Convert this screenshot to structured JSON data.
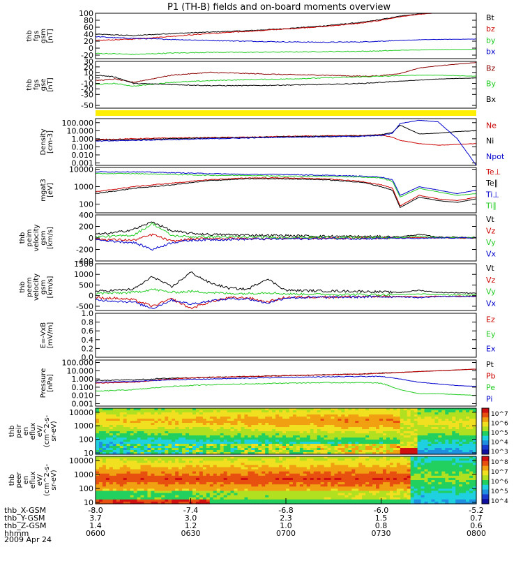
{
  "title": "P1 (TH-B) fields and on-board moments overview",
  "date_label": "2009 Apr 24",
  "colors": {
    "black": "#000000",
    "red": "#cc0000",
    "darkred": "#8b0000",
    "green": "#22cc22",
    "blue": "#0000cc",
    "yellow": "#ffee00"
  },
  "time_axis": {
    "rows": [
      {
        "label": "thb_X-GSM",
        "values": [
          "-8.0",
          "-7.4",
          "-6.8",
          "-6.0",
          "-5.2"
        ]
      },
      {
        "label": "thb_Y-GSM",
        "values": [
          "3.7",
          "3.0",
          "2.3",
          "1.5",
          "0.7"
        ]
      },
      {
        "label": "thb_Z-GSM",
        "values": [
          "1.4",
          "1.2",
          "1.0",
          "0.8",
          "0.6"
        ]
      },
      {
        "label": "hhmm",
        "values": [
          "0600",
          "0630",
          "0700",
          "0730",
          "0800"
        ]
      }
    ]
  },
  "chart_data": [
    {
      "type": "line",
      "name": "fgs_gsm",
      "ylabel_lines": [
        "thb",
        "fgs",
        "gsm",
        "[nT]"
      ],
      "ylim": [
        -30,
        100
      ],
      "ticks": [
        "100",
        "80",
        "60",
        "40",
        "20",
        "0",
        "-20"
      ],
      "tick_values": [
        100,
        80,
        60,
        40,
        20,
        0,
        -20
      ],
      "legend": [
        {
          "text": "Bt",
          "color": "#000000"
        },
        {
          "text": "bz",
          "color": "#cc0000"
        },
        {
          "text": "by",
          "color": "#22cc22"
        },
        {
          "text": "bx",
          "color": "#0000cc"
        }
      ],
      "x": [
        0,
        0.05,
        0.1,
        0.2,
        0.3,
        0.4,
        0.5,
        0.6,
        0.7,
        0.75,
        0.8,
        0.85,
        0.9,
        1.0
      ],
      "series": [
        {
          "color": "#000000",
          "values": [
            40,
            38,
            36,
            42,
            46,
            50,
            56,
            64,
            74,
            82,
            92,
            98,
            102,
            106
          ]
        },
        {
          "color": "#cc0000",
          "values": [
            22,
            24,
            26,
            34,
            42,
            48,
            55,
            62,
            72,
            80,
            90,
            97,
            101,
            105
          ]
        },
        {
          "color": "#0000cc",
          "values": [
            33,
            30,
            28,
            25,
            22,
            20,
            18,
            17,
            18,
            20,
            22,
            24,
            25,
            26
          ]
        },
        {
          "color": "#22cc22",
          "values": [
            -15,
            -16,
            -18,
            -14,
            -12,
            -12,
            -11,
            -10,
            -9,
            -8,
            -6,
            -5,
            -4,
            -3
          ]
        }
      ]
    },
    {
      "type": "line",
      "name": "fgs_gse",
      "ylabel_lines": [
        "thb",
        "fgs",
        "gse",
        "[nT]"
      ],
      "ylim": [
        -55,
        30
      ],
      "ticks": [
        "30",
        "20",
        "10",
        "0",
        "-10",
        "-20",
        "-30",
        "-50"
      ],
      "tick_values": [
        30,
        20,
        10,
        0,
        -10,
        -20,
        -30,
        -50
      ],
      "legend": [
        {
          "text": "Bz",
          "color": "#8b0000"
        },
        {
          "text": "By",
          "color": "#22cc22"
        },
        {
          "text": "Bx",
          "color": "#000000"
        }
      ],
      "x": [
        0,
        0.05,
        0.1,
        0.2,
        0.3,
        0.4,
        0.5,
        0.6,
        0.7,
        0.75,
        0.8,
        0.85,
        0.9,
        1.0
      ],
      "series": [
        {
          "color": "#8b0000",
          "values": [
            -5,
            -2,
            -8,
            5,
            10,
            8,
            6,
            5,
            3,
            4,
            8,
            18,
            22,
            28
          ]
        },
        {
          "color": "#22cc22",
          "values": [
            -12,
            -10,
            -15,
            -8,
            -5,
            -3,
            -2,
            0,
            2,
            3,
            4,
            5,
            5,
            3
          ]
        },
        {
          "color": "#000000",
          "values": [
            5,
            2,
            -10,
            -12,
            -14,
            -14,
            -13,
            -12,
            -10,
            -8,
            -6,
            -4,
            -2,
            0
          ]
        }
      ]
    },
    {
      "type": "line",
      "name": "density",
      "scale": "log",
      "ylabel_lines": [
        "Density",
        "[cm-3]"
      ],
      "ylim_log": [
        -3.3,
        2.5
      ],
      "ticks": [
        "100.000",
        "10.000",
        "1.000",
        "0.100",
        "0.010",
        "0.001"
      ],
      "tick_values": [
        2,
        1,
        0,
        -1,
        -2,
        -3
      ],
      "legend": [
        {
          "text": "Ne",
          "color": "#cc0000"
        },
        {
          "text": "Ni",
          "color": "#000000"
        },
        {
          "text": "Npot",
          "color": "#0000cc"
        }
      ],
      "x": [
        0,
        0.1,
        0.2,
        0.3,
        0.4,
        0.5,
        0.6,
        0.7,
        0.75,
        0.78,
        0.8,
        0.85,
        0.9,
        0.95,
        1.0
      ],
      "series": [
        {
          "color": "#cc0000",
          "values": [
            -0.1,
            0,
            0.1,
            0.15,
            0.2,
            0.3,
            0.35,
            0.4,
            0.5,
            0.2,
            -0.2,
            -0.6,
            -0.8,
            -0.7,
            -0.6
          ]
        },
        {
          "color": "#000000",
          "values": [
            -0.2,
            -0.1,
            0,
            0.1,
            0.15,
            0.25,
            0.3,
            0.35,
            0.5,
            0.8,
            1.7,
            0.6,
            0.7,
            0.9,
            1.0
          ]
        },
        {
          "color": "#0000cc",
          "values": [
            -0.3,
            -0.2,
            -0.1,
            0,
            0.1,
            0.2,
            0.25,
            0.3,
            0.4,
            0.7,
            1.9,
            2.3,
            2.1,
            0,
            -3.3
          ]
        }
      ]
    },
    {
      "type": "line",
      "name": "temperature",
      "scale": "log",
      "ylabel_lines": [
        "mgat3",
        "[eV]"
      ],
      "ylim_log": [
        1.5,
        4.1
      ],
      "ticks": [
        "10000",
        "1000",
        "100"
      ],
      "tick_values": [
        4,
        3,
        2
      ],
      "legend": [
        {
          "text": "Te⊥",
          "color": "#cc0000"
        },
        {
          "text": "Te∥",
          "color": "#000000"
        },
        {
          "text": "Ti⊥",
          "color": "#0000cc"
        },
        {
          "text": "Ti∥",
          "color": "#22cc22"
        }
      ],
      "x": [
        0,
        0.1,
        0.2,
        0.3,
        0.4,
        0.5,
        0.6,
        0.7,
        0.75,
        0.78,
        0.8,
        0.85,
        0.9,
        0.95,
        1.0
      ],
      "series": [
        {
          "color": "#cc0000",
          "values": [
            2.7,
            3.0,
            3.2,
            3.4,
            3.5,
            3.5,
            3.45,
            3.3,
            3.1,
            2.9,
            1.9,
            2.5,
            2.3,
            2.2,
            2.4
          ]
        },
        {
          "color": "#000000",
          "values": [
            2.6,
            2.9,
            3.1,
            3.35,
            3.45,
            3.45,
            3.4,
            3.25,
            3.0,
            2.8,
            1.8,
            2.4,
            2.2,
            2.1,
            2.3
          ]
        },
        {
          "color": "#0000cc",
          "values": [
            3.85,
            3.85,
            3.8,
            3.75,
            3.7,
            3.7,
            3.65,
            3.6,
            3.55,
            3.4,
            2.5,
            3.0,
            2.8,
            2.6,
            2.8
          ]
        },
        {
          "color": "#22cc22",
          "values": [
            3.75,
            3.75,
            3.7,
            3.65,
            3.65,
            3.6,
            3.6,
            3.55,
            3.5,
            3.3,
            2.4,
            2.9,
            2.7,
            2.5,
            2.6
          ]
        }
      ]
    },
    {
      "type": "line",
      "name": "peim_velocity",
      "ylabel_lines": [
        "thb",
        "peim",
        "velocity",
        "gsm",
        "[km/s]"
      ],
      "ylim": [
        -400,
        400
      ],
      "ticks": [
        "400",
        "200",
        "0",
        "-200",
        "-400"
      ],
      "tick_values": [
        400,
        200,
        0,
        -200,
        -400
      ],
      "legend": [
        {
          "text": "Vt",
          "color": "#000000"
        },
        {
          "text": "Vz",
          "color": "#cc0000"
        },
        {
          "text": "Vy",
          "color": "#22cc22"
        },
        {
          "text": "Vx",
          "color": "#0000cc"
        }
      ],
      "x": [
        0,
        0.05,
        0.1,
        0.15,
        0.2,
        0.25,
        0.3,
        0.4,
        0.5,
        0.6,
        0.7,
        0.8,
        0.85,
        0.9,
        1.0
      ],
      "series": [
        {
          "color": "#000000",
          "values": [
            60,
            90,
            150,
            280,
            120,
            80,
            60,
            50,
            40,
            30,
            25,
            20,
            60,
            15,
            10
          ]
        },
        {
          "color": "#cc0000",
          "values": [
            -20,
            -30,
            -40,
            60,
            -60,
            -20,
            -10,
            -10,
            -5,
            -5,
            0,
            0,
            10,
            0,
            0
          ]
        },
        {
          "color": "#22cc22",
          "values": [
            20,
            30,
            50,
            250,
            40,
            20,
            20,
            15,
            10,
            10,
            5,
            5,
            30,
            5,
            5
          ]
        },
        {
          "color": "#0000cc",
          "values": [
            -30,
            -60,
            -80,
            -200,
            -80,
            -40,
            -30,
            -20,
            -15,
            -10,
            -10,
            -5,
            -10,
            0,
            0
          ]
        }
      ]
    },
    {
      "type": "line",
      "name": "peem_velocity",
      "ylabel_lines": [
        "thb",
        "peem",
        "velocity",
        "gsm",
        "[km/s]"
      ],
      "ylim": [
        -700,
        1500
      ],
      "ticks": [
        "1500",
        "1000",
        "500",
        "0",
        "-500"
      ],
      "tick_values": [
        1500,
        1000,
        500,
        0,
        -500
      ],
      "legend": [
        {
          "text": "Vt",
          "color": "#000000"
        },
        {
          "text": "Vz",
          "color": "#cc0000"
        },
        {
          "text": "Vy",
          "color": "#22cc22"
        },
        {
          "text": "Vx",
          "color": "#0000cc"
        }
      ],
      "x": [
        0,
        0.05,
        0.1,
        0.15,
        0.2,
        0.25,
        0.3,
        0.35,
        0.4,
        0.45,
        0.5,
        0.6,
        0.7,
        0.8,
        0.85,
        0.9,
        1.0
      ],
      "series": [
        {
          "color": "#000000",
          "values": [
            200,
            250,
            300,
            900,
            400,
            1100,
            600,
            350,
            300,
            800,
            250,
            220,
            200,
            150,
            250,
            150,
            120
          ]
        },
        {
          "color": "#cc0000",
          "values": [
            -100,
            -120,
            -200,
            -500,
            -150,
            -600,
            -300,
            -100,
            -100,
            -300,
            -80,
            -60,
            -50,
            -40,
            -60,
            -30,
            -30
          ]
        },
        {
          "color": "#22cc22",
          "values": [
            100,
            120,
            150,
            300,
            150,
            200,
            150,
            100,
            100,
            150,
            80,
            60,
            50,
            40,
            80,
            40,
            30
          ]
        },
        {
          "color": "#0000cc",
          "values": [
            -200,
            -250,
            -300,
            -600,
            -200,
            -400,
            -250,
            -150,
            -150,
            -350,
            -100,
            -80,
            -60,
            -50,
            -100,
            -40,
            -40
          ]
        }
      ]
    },
    {
      "type": "line",
      "name": "efield",
      "ylabel_lines": [
        "E=-VxB",
        "[mV/m]"
      ],
      "ylim": [
        0,
        1
      ],
      "ticks": [
        "1.0",
        "0.8",
        "0.6",
        "0.4",
        "0.2",
        "0.0"
      ],
      "tick_values": [
        1,
        0.8,
        0.6,
        0.4,
        0.2,
        0
      ],
      "legend": [
        {
          "text": "Ez",
          "color": "#cc0000"
        },
        {
          "text": "Ey",
          "color": "#22cc22"
        },
        {
          "text": "Ex",
          "color": "#0000cc"
        }
      ],
      "x": [],
      "series": []
    },
    {
      "type": "line",
      "name": "pressure",
      "scale": "log",
      "ylabel_lines": [
        "Pressure",
        "[nPa]"
      ],
      "ylim_log": [
        -3.3,
        2.3
      ],
      "ticks": [
        "100.000",
        "10.000",
        "1.000",
        "0.100",
        "0.010",
        "0.001"
      ],
      "tick_values": [
        2,
        1,
        0,
        -1,
        -2,
        -3
      ],
      "legend": [
        {
          "text": "Pt",
          "color": "#000000"
        },
        {
          "text": "Pb",
          "color": "#cc0000"
        },
        {
          "text": "Pe",
          "color": "#22cc22"
        },
        {
          "text": "Pi",
          "color": "#0000cc"
        }
      ],
      "x": [
        0,
        0.1,
        0.2,
        0.3,
        0.4,
        0.5,
        0.6,
        0.7,
        0.75,
        0.8,
        0.85,
        0.9,
        0.95,
        1.0
      ],
      "series": [
        {
          "color": "#000000",
          "values": [
            -0.2,
            -0.1,
            0.1,
            0.2,
            0.3,
            0.4,
            0.5,
            0.6,
            0.7,
            0.8,
            0.9,
            1.0,
            1.1,
            1.2
          ]
        },
        {
          "color": "#cc0000",
          "values": [
            -0.5,
            -0.4,
            0,
            0.2,
            0.3,
            0.4,
            0.5,
            0.6,
            0.7,
            0.8,
            0.9,
            1.0,
            1.1,
            1.2
          ]
        },
        {
          "color": "#22cc22",
          "values": [
            -1.5,
            -1.3,
            -0.9,
            -0.7,
            -0.6,
            -0.5,
            -0.45,
            -0.45,
            -0.5,
            -1.3,
            -1.8,
            -1.8,
            -1.9,
            -2.0
          ]
        },
        {
          "color": "#0000cc",
          "values": [
            -0.4,
            -0.3,
            -0.1,
            0,
            0.1,
            0.2,
            0.25,
            0.3,
            0.3,
            0.0,
            -0.4,
            -0.6,
            -0.8,
            -0.9
          ]
        }
      ]
    },
    {
      "type": "heatmap",
      "name": "peir_eflux",
      "ylabel_lines": [
        "thb",
        "peir",
        "en",
        "eflux",
        "eV/",
        "(cm^2-s-",
        "sr-eV)"
      ],
      "ticks": [
        "10000",
        "1000",
        "100",
        "10"
      ],
      "tick_values": [
        4,
        3,
        2,
        1
      ],
      "ylim_log": [
        0.9,
        4.3
      ],
      "colorbar_labels": [
        "10^7",
        "10^6",
        "10^5",
        "10^4",
        "10^3"
      ]
    },
    {
      "type": "heatmap",
      "name": "peer_eflux",
      "ylabel_lines": [
        "thb",
        "peer",
        "en",
        "eflux",
        "eV/",
        "(cm^2-s-",
        "sr-eV)"
      ],
      "ticks": [
        "10000",
        "1000",
        "100",
        "10"
      ],
      "tick_values": [
        4,
        3,
        2,
        1
      ],
      "ylim_log": [
        0.9,
        4.3
      ],
      "colorbar_labels": [
        "10^8",
        "10^7",
        "10^6",
        "10^5",
        "10^4"
      ]
    }
  ]
}
